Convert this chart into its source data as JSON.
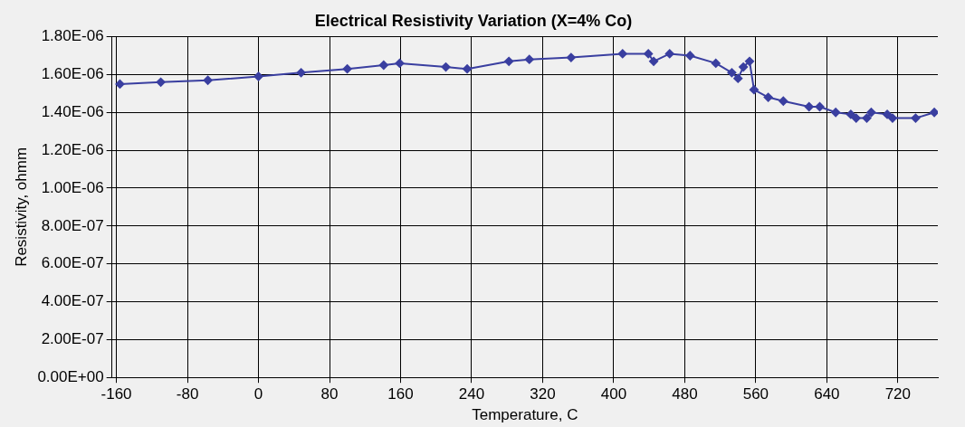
{
  "chart_data": {
    "type": "line",
    "title": "Electrical Resistivity Variation (X=4% Co)",
    "xlabel": "Temperature, C",
    "ylabel": "Resistivity, ohmm",
    "x": [
      -156,
      -110,
      -57,
      0,
      48,
      100,
      141,
      159,
      211,
      235,
      282,
      305,
      352,
      410,
      439,
      445,
      463,
      486,
      515,
      533,
      540,
      546,
      553,
      558,
      574,
      591,
      620,
      632,
      650,
      667,
      673,
      685,
      690,
      708,
      714,
      740,
      761
    ],
    "series": [
      {
        "color": "#3a3fa0",
        "values": [
          1.55e-06,
          1.56e-06,
          1.57e-06,
          1.59e-06,
          1.61e-06,
          1.63e-06,
          1.65e-06,
          1.66e-06,
          1.64e-06,
          1.63e-06,
          1.67e-06,
          1.68e-06,
          1.69e-06,
          1.71e-06,
          1.71e-06,
          1.67e-06,
          1.71e-06,
          1.7e-06,
          1.66e-06,
          1.61e-06,
          1.58e-06,
          1.64e-06,
          1.67e-06,
          1.52e-06,
          1.48e-06,
          1.46e-06,
          1.43e-06,
          1.43e-06,
          1.4e-06,
          1.39e-06,
          1.37e-06,
          1.37e-06,
          1.4e-06,
          1.39e-06,
          1.37e-06,
          1.37e-06,
          1.4e-06
        ]
      }
    ],
    "xlim": [
      -165,
      765
    ],
    "xticks": [
      -160,
      -80,
      0,
      80,
      160,
      240,
      320,
      400,
      480,
      560,
      640,
      720
    ],
    "ylim": [
      0,
      1.8e-06
    ],
    "yticks": [
      {
        "value": 0,
        "label": "0.00E+00"
      },
      {
        "value": 2e-07,
        "label": "2.00E-07"
      },
      {
        "value": 4e-07,
        "label": "4.00E-07"
      },
      {
        "value": 6e-07,
        "label": "6.00E-07"
      },
      {
        "value": 8e-07,
        "label": "8.00E-07"
      },
      {
        "value": 1e-06,
        "label": "1.00E-06"
      },
      {
        "value": 1.2e-06,
        "label": "1.20E-06"
      },
      {
        "value": 1.4e-06,
        "label": "1.40E-06"
      },
      {
        "value": 1.6e-06,
        "label": "1.60E-06"
      },
      {
        "value": 1.8e-06,
        "label": "1.80E-06"
      }
    ],
    "grid": true,
    "legend": false,
    "marker": "diamond",
    "line_style": "solid"
  }
}
